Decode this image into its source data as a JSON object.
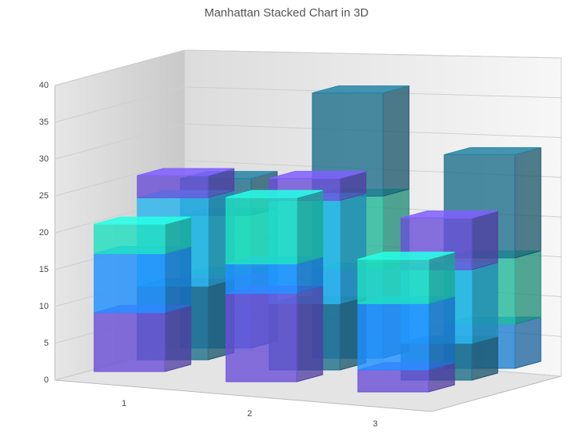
{
  "chart_data": {
    "type": "manhattan3d",
    "title": "Manhattan Stacked Chart in 3D",
    "categories": [
      "1",
      "2",
      "3"
    ],
    "ylim": [
      0,
      40
    ],
    "yticks": [
      0,
      5,
      10,
      15,
      20,
      25,
      30,
      35,
      40
    ],
    "grid": true,
    "rows": [
      {
        "series": [
          {
            "color": "#6a4fd8",
            "values": [
              8,
              12,
              3
            ]
          },
          {
            "color": "#1e90ff",
            "values": [
              8,
              4,
              9
            ]
          },
          {
            "color": "#1fe0c0",
            "values": [
              4,
              9,
              6
            ]
          }
        ]
      },
      {
        "series": [
          {
            "color": "#1f6f8b",
            "values": [
              10,
              9,
              5
            ]
          },
          {
            "color": "#29b6f0",
            "values": [
              12,
              14,
              10
            ]
          },
          {
            "color": "#6a4fd8",
            "values": [
              3,
              3,
              7
            ]
          }
        ]
      },
      {
        "series": [
          {
            "color": "#1e80d0",
            "values": [
              10,
              12,
              6
            ]
          },
          {
            "color": "#22b89a",
            "values": [
              8,
              10,
              9
            ]
          },
          {
            "color": "#1f6f8b",
            "values": [
              5,
              14,
              14
            ]
          }
        ]
      }
    ]
  }
}
